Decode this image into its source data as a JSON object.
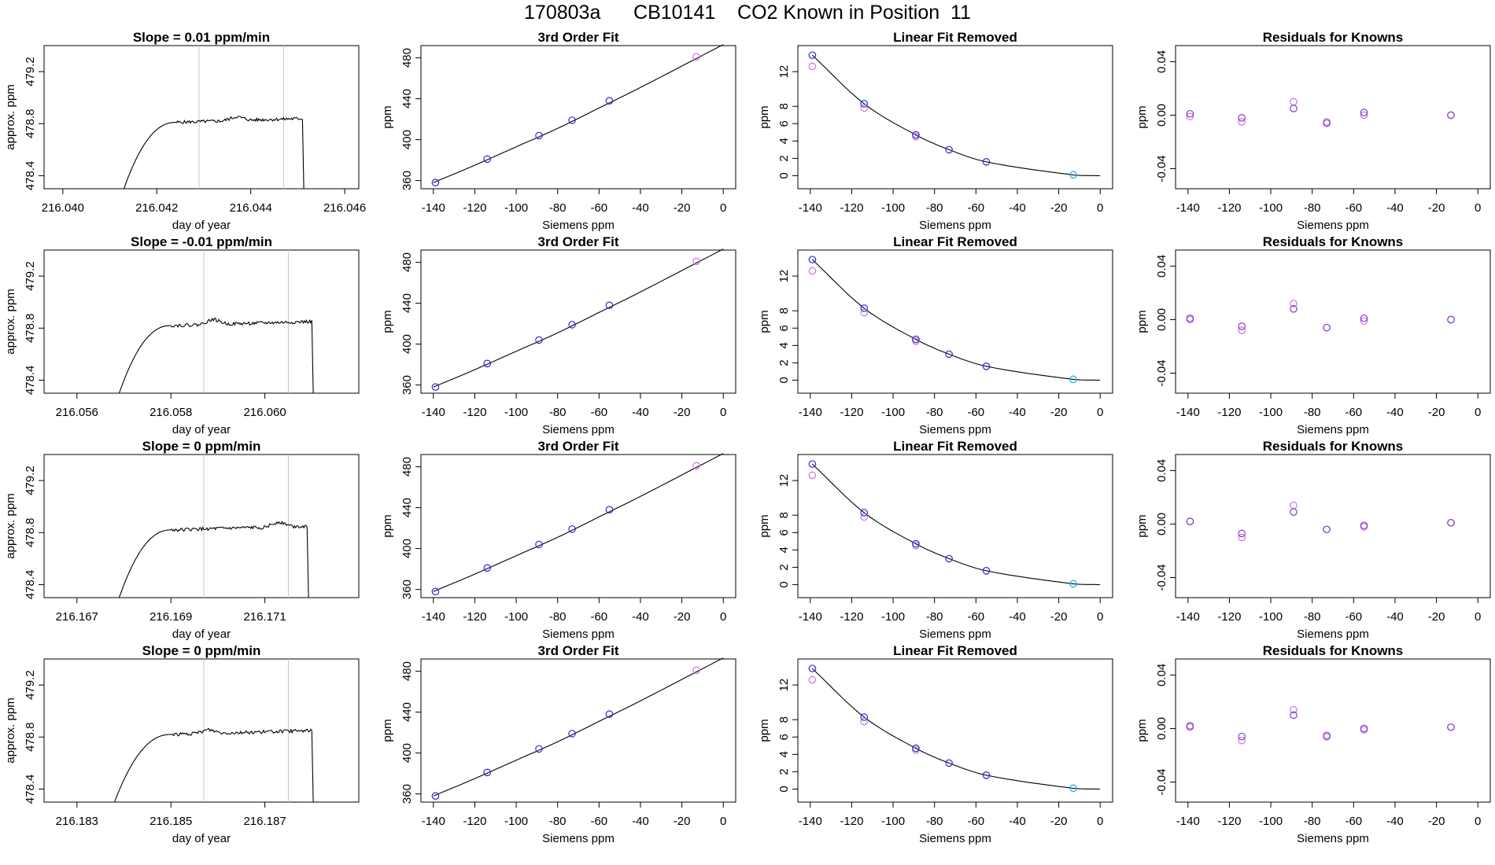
{
  "page": {
    "title": "170803a      CB10141    CO2 Known in Position  11"
  },
  "colors": {
    "trace": "#000000",
    "vline": "#c8c8c8",
    "fit_line": "#000000",
    "point_blue": "#2b2bd6",
    "point_magenta": "#d070e0",
    "point_cyan": "#20a8e0",
    "point_purple": "#7b3fd0"
  },
  "panel_titles": {
    "fit": "3rd Order Fit",
    "lin": "Linear Fit Removed",
    "res": "Residuals for Knowns"
  },
  "axis_labels": {
    "day_of_year": "day of year",
    "approx_ppm": "approx. ppm",
    "siemens_ppm": "Siemens ppm",
    "ppm": "ppm"
  },
  "chart_data": {
    "type": "multi-panel",
    "rows": [
      {
        "slope_title": "Slope =  0.01  ppm/min",
        "ts": {
          "xlim": [
            216.0396,
            216.0463
          ],
          "ylim": [
            478.3,
            479.4
          ],
          "xticks": [
            216.04,
            216.042,
            216.044,
            216.046
          ],
          "xtick_labels": [
            "216.040",
            "216.042",
            "216.044",
            "216.046"
          ],
          "yticks": [
            478.4,
            478.8,
            479.2
          ],
          "ytick_labels": [
            "478.4",
            "478.8",
            "479.2"
          ],
          "vlines": [
            216.0429,
            216.0447
          ],
          "t_start": 216.0413,
          "t_flat": 216.0424,
          "t_drop": 216.0451,
          "level": 478.83,
          "bump": [
            216.0437,
            478.86
          ]
        }
      },
      {
        "slope_title": "Slope =  -0.01  ppm/min",
        "ts": {
          "xlim": [
            216.0553,
            216.062
          ],
          "ylim": [
            478.3,
            479.4
          ],
          "xticks": [
            216.056,
            216.058,
            216.06
          ],
          "xtick_labels": [
            "216.056",
            "216.058",
            "216.060"
          ],
          "yticks": [
            478.4,
            478.8,
            479.2
          ],
          "ytick_labels": [
            "478.4",
            "478.8",
            "479.2"
          ],
          "vlines": [
            216.0587,
            216.0605
          ],
          "t_start": 216.0569,
          "t_flat": 216.058,
          "t_drop": 216.061,
          "level": 478.84,
          "bump": [
            216.0589,
            478.88
          ]
        }
      },
      {
        "slope_title": "Slope =  0  ppm/min",
        "ts": {
          "xlim": [
            216.1663,
            216.173
          ],
          "ylim": [
            478.3,
            479.4
          ],
          "xticks": [
            216.167,
            216.169,
            216.171
          ],
          "xtick_labels": [
            "216.167",
            "216.169",
            "216.171"
          ],
          "yticks": [
            478.4,
            478.8,
            479.2
          ],
          "ytick_labels": [
            "478.4",
            "478.8",
            "479.2"
          ],
          "vlines": [
            216.1697,
            216.1715
          ],
          "t_start": 216.1679,
          "t_flat": 216.169,
          "t_drop": 216.1719,
          "level": 478.84,
          "bump": [
            216.1713,
            478.88
          ]
        }
      },
      {
        "slope_title": "Slope =  0  ppm/min",
        "ts": {
          "xlim": [
            216.1823,
            216.189
          ],
          "ylim": [
            478.3,
            479.4
          ],
          "xticks": [
            216.183,
            216.185,
            216.187
          ],
          "xtick_labels": [
            "216.183",
            "216.185",
            "216.187"
          ],
          "yticks": [
            478.4,
            478.8,
            479.2
          ],
          "ytick_labels": [
            "478.4",
            "478.8",
            "479.2"
          ],
          "vlines": [
            216.1857,
            216.1875
          ],
          "t_start": 216.1838,
          "t_flat": 216.185,
          "t_drop": 216.188,
          "level": 478.84,
          "bump": [
            216.1858,
            478.87
          ]
        }
      }
    ],
    "fit": {
      "xlim": [
        -146,
        6
      ],
      "ylim": [
        352,
        492
      ],
      "xticks": [
        -140,
        -120,
        -100,
        -80,
        -60,
        -40,
        -20,
        0
      ],
      "xtick_labels": [
        "-140",
        "-120",
        "-100",
        "-80",
        "-60",
        "-40",
        "-20",
        "0"
      ],
      "yticks": [
        360,
        400,
        440,
        480
      ],
      "ytick_labels": [
        "360",
        "400",
        "440",
        "480"
      ],
      "curve": [
        [
          -140,
          358
        ],
        [
          -120,
          375
        ],
        [
          -100,
          393
        ],
        [
          -80,
          411
        ],
        [
          -60,
          431
        ],
        [
          -40,
          451
        ],
        [
          -20,
          472
        ],
        [
          0,
          493
        ]
      ],
      "points_blue": [
        [
          -139,
          358
        ],
        [
          -114,
          381
        ],
        [
          -89,
          404
        ],
        [
          -73,
          419
        ],
        [
          -55,
          438
        ]
      ],
      "points_magenta": [
        [
          -13,
          481
        ]
      ]
    },
    "linfit": {
      "xlim": [
        -146,
        6
      ],
      "ylim": [
        -1.5,
        15
      ],
      "xticks": [
        -140,
        -120,
        -100,
        -80,
        -60,
        -40,
        -20,
        0
      ],
      "xtick_labels": [
        "-140",
        "-120",
        "-100",
        "-80",
        "-60",
        "-40",
        "-20",
        "0"
      ],
      "yticks": [
        0,
        2,
        4,
        6,
        8,
        12
      ],
      "ytick_labels": [
        "0",
        "2",
        "4",
        "6",
        "8",
        "12"
      ],
      "curve_points_for_cubic": [
        [
          -139,
          13.9
        ],
        [
          -114,
          8.3
        ],
        [
          -89,
          4.7
        ],
        [
          -73,
          3.0
        ],
        [
          -55,
          1.6
        ],
        [
          -13,
          0.1
        ],
        [
          0,
          0
        ]
      ],
      "points_blue": [
        [
          -139,
          13.9
        ],
        [
          -114,
          8.3
        ],
        [
          -89,
          4.7
        ],
        [
          -73,
          3.0
        ],
        [
          -55,
          1.6
        ]
      ],
      "points_magenta": [
        [
          -139,
          12.6
        ],
        [
          -114,
          7.8
        ],
        [
          -89,
          4.5
        ]
      ],
      "points_cyan": [
        [
          -13,
          0.1
        ]
      ]
    },
    "residuals": {
      "xlim": [
        -146,
        6
      ],
      "ylim": [
        -0.055,
        0.052
      ],
      "xticks": [
        -140,
        -120,
        -100,
        -80,
        -60,
        -40,
        -20,
        0
      ],
      "xtick_labels": [
        "-140",
        "-120",
        "-100",
        "-80",
        "-60",
        "-40",
        "-20",
        "0"
      ],
      "yticks": [
        -0.04,
        0.0,
        0.04
      ],
      "ytick_labels": [
        "-0.04",
        "0.00",
        "0.04"
      ],
      "rows": [
        {
          "blue": [
            [
              -139,
              0.001
            ],
            [
              -114,
              -0.002
            ],
            [
              -89,
              0.005
            ],
            [
              -73,
              -0.006
            ],
            [
              -55,
              0.002
            ],
            [
              -13,
              0.0
            ]
          ],
          "magenta": [
            [
              -139,
              -0.001
            ],
            [
              -114,
              -0.005
            ],
            [
              -89,
              0.01
            ],
            [
              -73,
              -0.005
            ],
            [
              -55,
              0.0
            ],
            [
              -13,
              0.0
            ]
          ]
        },
        {
          "blue": [
            [
              -139,
              0.001
            ],
            [
              -114,
              -0.005
            ],
            [
              -89,
              0.008
            ],
            [
              -73,
              -0.006
            ],
            [
              -55,
              0.001
            ],
            [
              -13,
              0.0
            ]
          ],
          "magenta": [
            [
              -139,
              0.0
            ],
            [
              -114,
              -0.008
            ],
            [
              -89,
              0.012
            ],
            [
              -73,
              -0.006
            ],
            [
              -55,
              -0.001
            ],
            [
              -13,
              0.0
            ]
          ]
        },
        {
          "blue": [
            [
              -139,
              0.002
            ],
            [
              -114,
              -0.007
            ],
            [
              -89,
              0.009
            ],
            [
              -73,
              -0.004
            ],
            [
              -55,
              -0.001
            ],
            [
              -13,
              0.001
            ]
          ],
          "magenta": [
            [
              -139,
              0.002
            ],
            [
              -114,
              -0.01
            ],
            [
              -89,
              0.014
            ],
            [
              -73,
              -0.004
            ],
            [
              -55,
              -0.002
            ],
            [
              -13,
              0.001
            ]
          ]
        },
        {
          "blue": [
            [
              -139,
              0.002
            ],
            [
              -114,
              -0.006
            ],
            [
              -89,
              0.01
            ],
            [
              -73,
              -0.006
            ],
            [
              -55,
              0.0
            ],
            [
              -13,
              0.001
            ]
          ],
          "magenta": [
            [
              -139,
              0.001
            ],
            [
              -114,
              -0.009
            ],
            [
              -89,
              0.014
            ],
            [
              -73,
              -0.005
            ],
            [
              -55,
              -0.001
            ],
            [
              -13,
              0.001
            ]
          ]
        }
      ]
    }
  }
}
